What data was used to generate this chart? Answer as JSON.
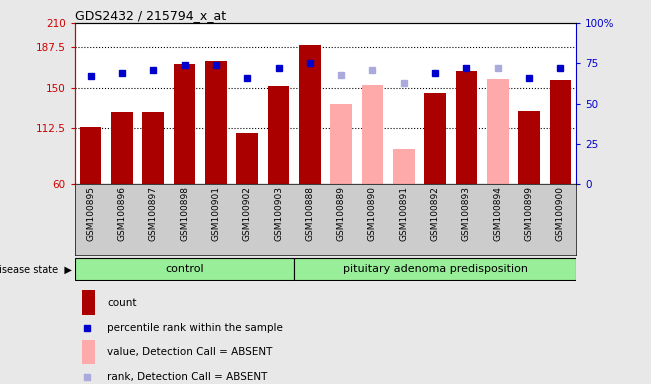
{
  "title": "GDS2432 / 215794_x_at",
  "samples": [
    "GSM100895",
    "GSM100896",
    "GSM100897",
    "GSM100898",
    "GSM100901",
    "GSM100902",
    "GSM100903",
    "GSM100888",
    "GSM100889",
    "GSM100890",
    "GSM100891",
    "GSM100892",
    "GSM100893",
    "GSM100894",
    "GSM100899",
    "GSM100900"
  ],
  "bar_values": [
    113,
    127,
    127,
    172,
    175,
    108,
    151,
    190,
    135,
    152,
    93,
    145,
    165,
    158,
    128,
    157
  ],
  "bar_colors": [
    "#aa0000",
    "#aa0000",
    "#aa0000",
    "#aa0000",
    "#aa0000",
    "#aa0000",
    "#aa0000",
    "#aa0000",
    "#ffaaaa",
    "#ffaaaa",
    "#ffaaaa",
    "#aa0000",
    "#aa0000",
    "#ffaaaa",
    "#aa0000",
    "#aa0000"
  ],
  "rank_values": [
    67,
    69,
    71,
    74,
    74,
    66,
    72,
    75,
    68,
    71,
    63,
    69,
    72,
    72,
    66,
    72
  ],
  "rank_colors": [
    "#0000cc",
    "#0000cc",
    "#0000cc",
    "#0000cc",
    "#0000cc",
    "#0000cc",
    "#0000cc",
    "#0000cc",
    "#aaaadd",
    "#aaaadd",
    "#aaaadd",
    "#0000cc",
    "#0000cc",
    "#aaaadd",
    "#0000cc",
    "#0000cc"
  ],
  "n_control": 7,
  "ylim_left": [
    60,
    210
  ],
  "ylim_right": [
    0,
    100
  ],
  "yticks_left": [
    60,
    112.5,
    150,
    187.5,
    210
  ],
  "yticks_right": [
    0,
    25,
    50,
    75,
    100
  ],
  "ytick_labels_left": [
    "60",
    "112.5",
    "150",
    "187.5",
    "210"
  ],
  "ytick_labels_right": [
    "0",
    "25",
    "50",
    "75",
    "100%"
  ],
  "hlines": [
    112.5,
    150,
    187.5
  ],
  "fig_bg_color": "#e8e8e8",
  "plot_bg_color": "#ffffff",
  "xtick_bg_color": "#cccccc",
  "control_label": "control",
  "disease_label": "pituitary adenoma predisposition",
  "disease_state_label": "disease state",
  "disease_bar_color": "#99ee99",
  "legend_items": [
    {
      "label": "count",
      "color": "#aa0000",
      "type": "bar"
    },
    {
      "label": "percentile rank within the sample",
      "color": "#0000cc",
      "type": "square"
    },
    {
      "label": "value, Detection Call = ABSENT",
      "color": "#ffaaaa",
      "type": "bar"
    },
    {
      "label": "rank, Detection Call = ABSENT",
      "color": "#aaaadd",
      "type": "square"
    }
  ]
}
